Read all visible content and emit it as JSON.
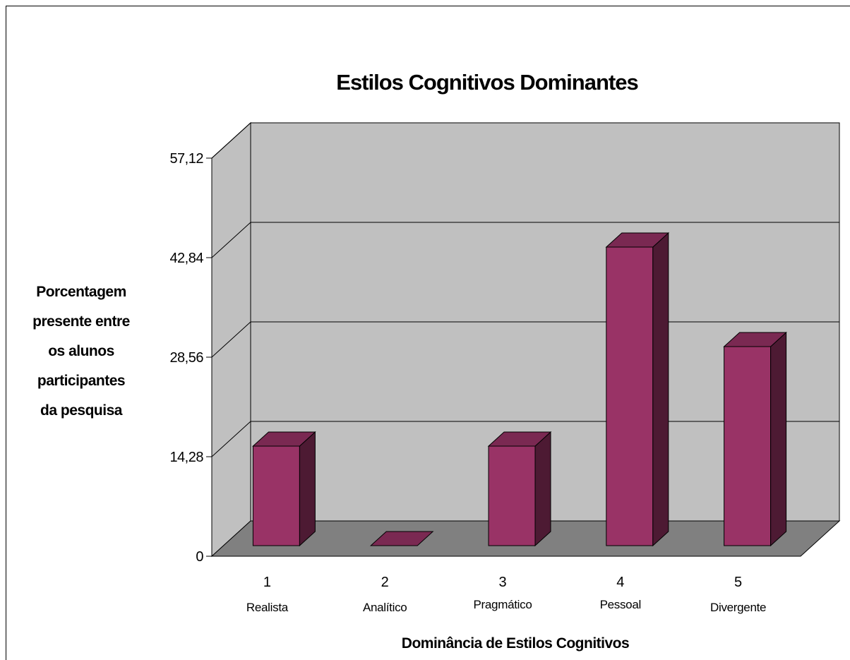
{
  "chart_data": {
    "type": "bar",
    "title": "Estilos Cognitivos Dominantes",
    "xlabel": "Dominância de Estilos Cognitivos",
    "ylabel_lines": [
      "Porcentagem",
      "presente entre",
      "os alunos",
      "participantes",
      "da pesquisa"
    ],
    "categories": [
      "1",
      "2",
      "3",
      "4",
      "5"
    ],
    "category_labels": [
      "Realista",
      "Analítico",
      "Pragmático",
      "Pessoal",
      "Divergente"
    ],
    "values": [
      14.28,
      0,
      14.28,
      42.84,
      28.56
    ],
    "yticks": [
      "0",
      "14,28",
      "28,56",
      "42,84",
      "57,12"
    ],
    "ylim": [
      0,
      57.12
    ],
    "grid": true,
    "style": "3d-column",
    "colors": {
      "bar_front": "#993366",
      "bar_top": "#7a2952",
      "bar_side": "#4d1a33",
      "back_wall": "#c0c0c0",
      "side_wall": "#c0c0c0",
      "floor": "#808080"
    }
  }
}
